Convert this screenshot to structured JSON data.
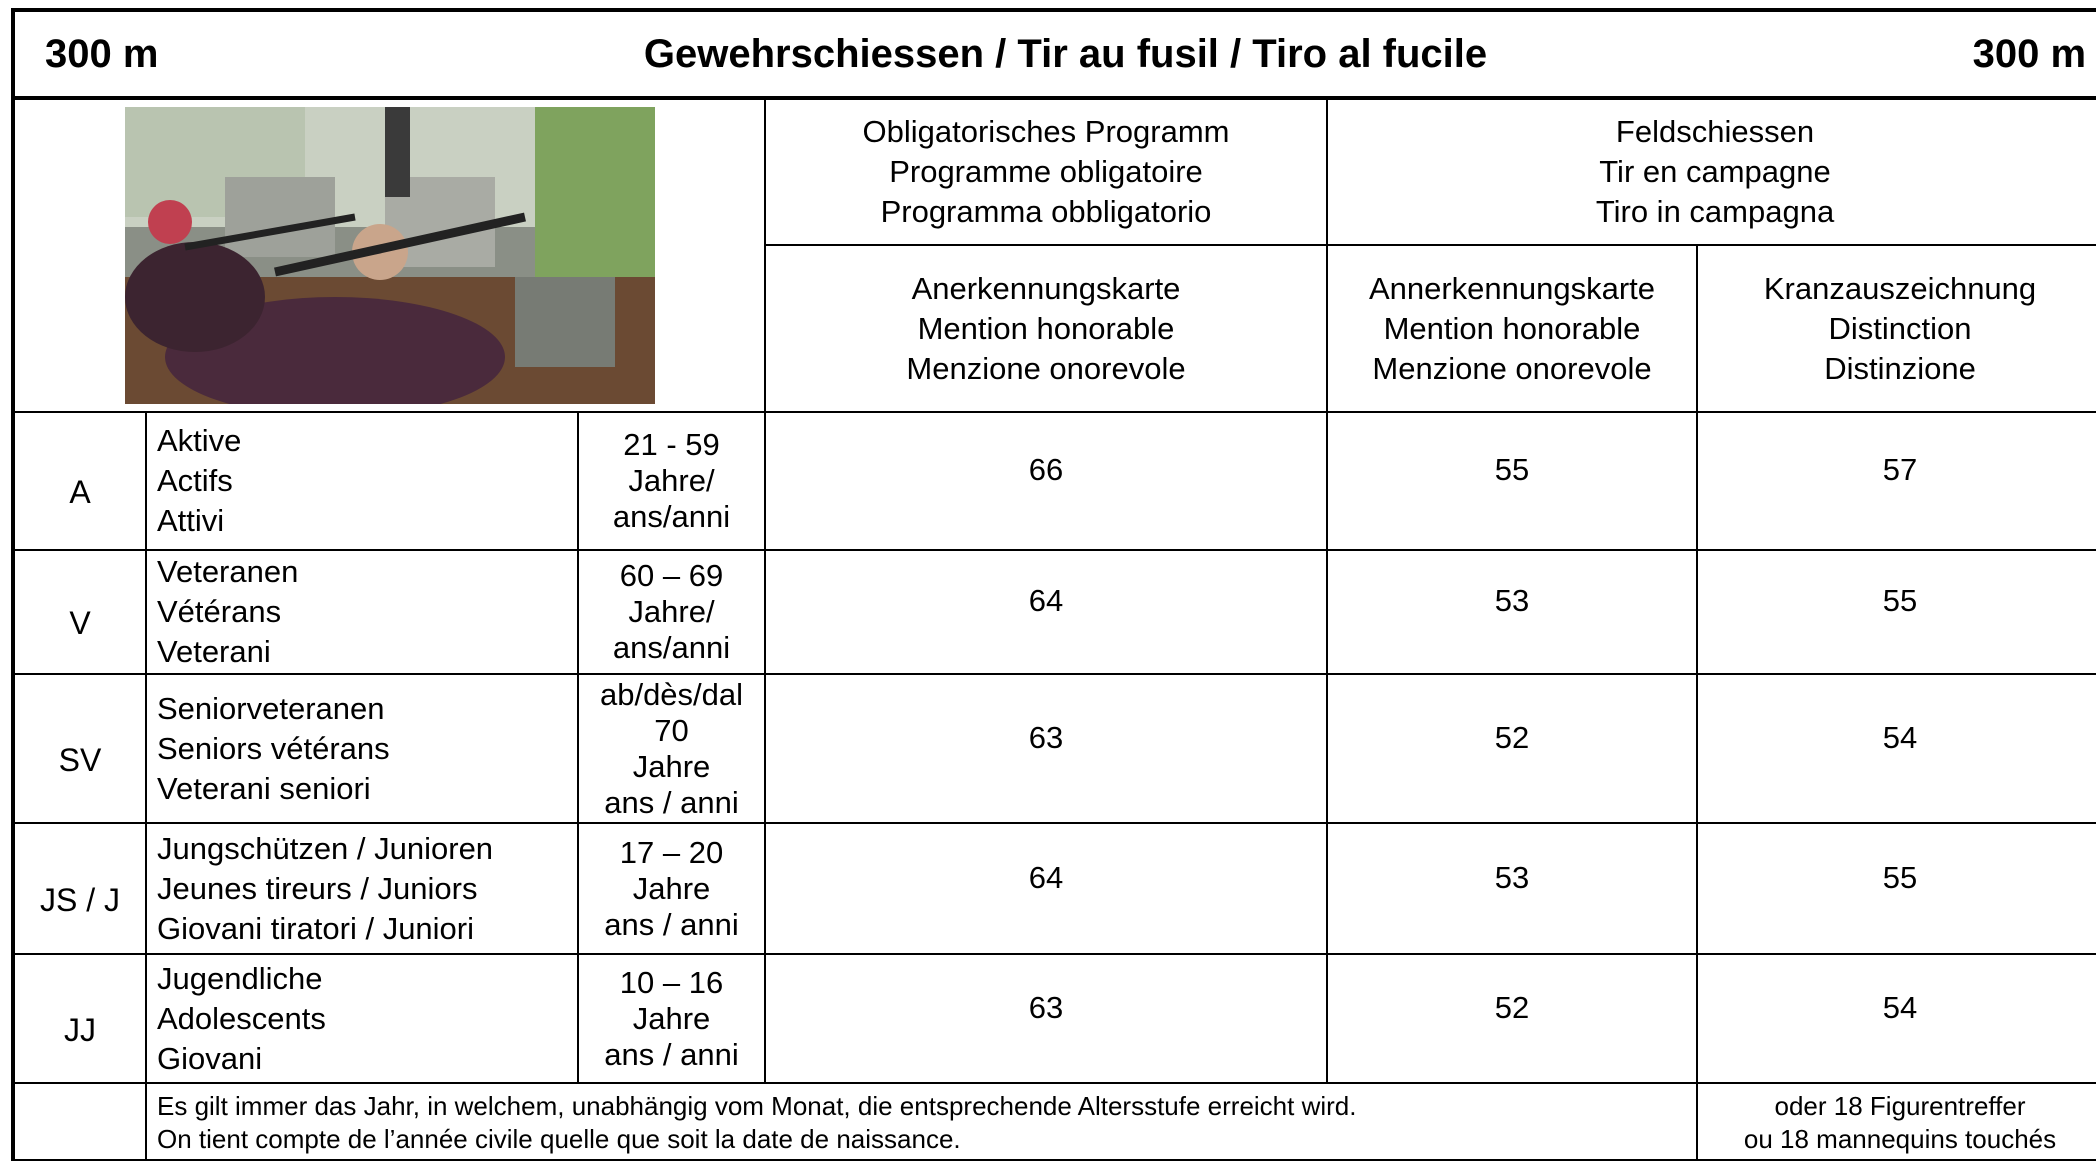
{
  "header": {
    "left": "300 m",
    "title": "Gewehrschiessen / Tir au fusil / Tiro al fucile",
    "right": "300 m"
  },
  "columns": {
    "obligatory": [
      "Obligatorisches Programm",
      "Programme obligatoire",
      "Programma obbligatorio"
    ],
    "field": [
      "Feldschiessen",
      "Tir en campagne",
      "Tiro in campagna"
    ],
    "sub": [
      [
        "Anerkennungskarte",
        "Mention honorable",
        "Menzione onorevole"
      ],
      [
        "Annerkennungskarte",
        "Mention honorable",
        "Menzione onorevole"
      ],
      [
        "Kranzauszeichnung",
        "Distinction",
        "Distinzione"
      ]
    ]
  },
  "rows": [
    {
      "code": "A",
      "names": [
        "Aktive",
        "Actifs",
        "Attivi"
      ],
      "age": [
        "21 - 59",
        "Jahre/",
        "ans/anni"
      ],
      "values": [
        66,
        55,
        57
      ]
    },
    {
      "code": "V",
      "names": [
        "Veteranen",
        "Vétérans",
        "Veterani"
      ],
      "age": [
        "60 – 69",
        "Jahre/",
        "ans/anni"
      ],
      "values": [
        64,
        53,
        55
      ]
    },
    {
      "code": "SV",
      "names": [
        "Seniorveteranen",
        "Seniors vétérans",
        "Veterani seniori"
      ],
      "age": [
        "ab/dès/dal",
        "70",
        "Jahre",
        "ans / anni"
      ],
      "values": [
        63,
        52,
        54
      ]
    },
    {
      "code": "JS / J",
      "names": [
        "Jungschützen / Junioren",
        "Jeunes tireurs / Juniors",
        "Giovani tiratori / Juniori"
      ],
      "age": [
        "17 – 20",
        "Jahre",
        "ans / anni"
      ],
      "values": [
        64,
        53,
        55
      ]
    },
    {
      "code": "JJ",
      "names": [
        "Jugendliche",
        "Adolescents",
        "Giovani"
      ],
      "age": [
        "10 – 16",
        "Jahre",
        "ans / anni"
      ],
      "values": [
        63,
        52,
        54
      ]
    }
  ],
  "footer": {
    "note": [
      "Es gilt immer das Jahr, in welchem, unabhängig vom Monat, die entsprechende Altersstufe erreicht wird.",
      "On tient compte de l’année civile quelle que soit la date de naissance."
    ],
    "right": [
      "oder 18 Figurentreffer",
      "ou 18 mannequins touchés"
    ]
  }
}
